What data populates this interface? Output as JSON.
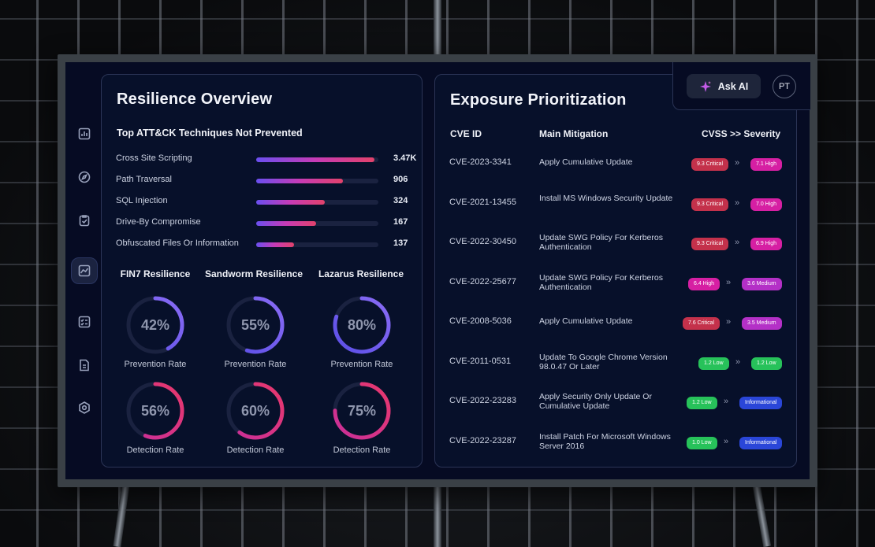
{
  "sidebar": {
    "icons": [
      "bar-chart-icon",
      "compass-icon",
      "clipboard-check-icon",
      "line-chart-icon",
      "checklist-icon",
      "document-icon",
      "hexagon-settings-icon"
    ],
    "active_index": 3
  },
  "resilience": {
    "title": "Resilience Overview",
    "techniques_title": "Top ATT&CK Techniques Not Prevented",
    "techniques": [
      {
        "name": "Cross Site Scripting",
        "value": "3.47K",
        "fraction": 0.97
      },
      {
        "name": "Path Traversal",
        "value": "906",
        "fraction": 0.71
      },
      {
        "name": "SQL Injection",
        "value": "324",
        "fraction": 0.56
      },
      {
        "name": "Drive-By Compromise",
        "value": "167",
        "fraction": 0.49
      },
      {
        "name": "Obfuscated Files Or Information",
        "value": "137",
        "fraction": 0.31
      }
    ],
    "groups": [
      {
        "title": "FIN7 Resilience",
        "prevention": "42%",
        "prevention_fraction": 0.42,
        "detection": "56%",
        "detection_fraction": 0.56
      },
      {
        "title": "Sandworm Resilience",
        "prevention": "55%",
        "prevention_fraction": 0.55,
        "detection": "60%",
        "detection_fraction": 0.6
      },
      {
        "title": "Lazarus Resilience",
        "prevention": "80%",
        "prevention_fraction": 0.8,
        "detection": "75%",
        "detection_fraction": 0.75
      }
    ],
    "prevention_label": "Prevention Rate",
    "detection_label": "Detection Rate"
  },
  "exposure": {
    "title": "Exposure Prioritization",
    "headers": {
      "cve": "CVE ID",
      "mitigation": "Main Mitigation",
      "severity": "CVSS >> Severity"
    },
    "arrow": "»",
    "rows": [
      {
        "cve": "CVE-2023-3341",
        "mitigation": "Apply Cumulative Update",
        "cvss": "9.3 Critical",
        "cvss_color": "#c4314b",
        "severity": "7.1 High",
        "severity_color": "#d61fa3"
      },
      {
        "cve": "CVE-2021-13455",
        "mitigation": "Install MS Windows Security Update",
        "cvss": "9.3 Critical",
        "cvss_color": "#c4314b",
        "severity": "7.0 High",
        "severity_color": "#d61fa3"
      },
      {
        "cve": "CVE-2022-30450",
        "mitigation": "Update SWG Policy For Kerberos Authentication",
        "cvss": "9.3 Critical",
        "cvss_color": "#c4314b",
        "severity": "6.9 High",
        "severity_color": "#d61fa3"
      },
      {
        "cve": "CVE-2022-25677",
        "mitigation": "Update SWG Policy For Kerberos Authentication",
        "cvss": "6.4 High",
        "cvss_color": "#d61fa3",
        "severity": "3.6 Medium",
        "severity_color": "#b430c7"
      },
      {
        "cve": "CVE-2008-5036",
        "mitigation": "Apply Cumulative Update",
        "cvss": "7.6 Critical",
        "cvss_color": "#c4314b",
        "severity": "3.5 Medium",
        "severity_color": "#b430c7"
      },
      {
        "cve": "CVE-2011-0531",
        "mitigation": "Update To Google Chrome Version 98.0.47 Or Later",
        "cvss": "1.2 Low",
        "cvss_color": "#27c25a",
        "severity": "1.2 Low",
        "severity_color": "#27c25a"
      },
      {
        "cve": "CVE-2022-23283",
        "mitigation": "Apply Security Only Update Or Cumulative Update",
        "cvss": "1.2 Low",
        "cvss_color": "#27c25a",
        "severity": "Informational",
        "severity_color": "#2a46d8"
      },
      {
        "cve": "CVE-2022-23287",
        "mitigation": "Install Patch For Microsoft Windows Server 2016",
        "cvss": "1.0 Low",
        "cvss_color": "#27c25a",
        "severity": "Informational",
        "severity_color": "#2a46d8"
      }
    ]
  },
  "header": {
    "ask_ai_label": "Ask AI",
    "avatar_initials": "PT"
  },
  "colors": {
    "prevention": "#6e5cf0",
    "detection": "#e0357e",
    "track": "#1a2240"
  }
}
